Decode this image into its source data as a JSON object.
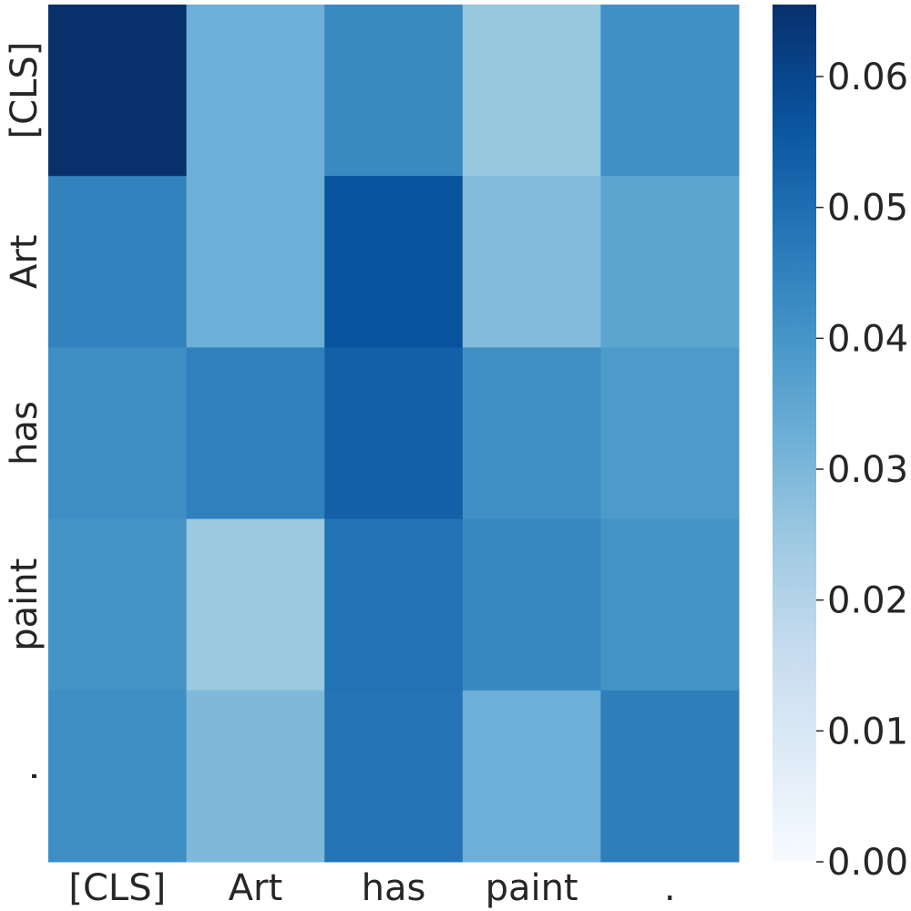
{
  "chart_data": {
    "type": "heatmap",
    "x_labels": [
      "[CLS]",
      "Art",
      "has",
      "paint",
      "."
    ],
    "y_labels": [
      "[CLS]",
      "Art",
      "has",
      "paint",
      "."
    ],
    "values": [
      [
        0.0655,
        0.0325,
        0.043,
        0.0255,
        0.0415
      ],
      [
        0.045,
        0.0325,
        0.057,
        0.029,
        0.0355
      ],
      [
        0.042,
        0.0455,
        0.0535,
        0.0415,
        0.0385
      ],
      [
        0.0405,
        0.025,
        0.049,
        0.0435,
        0.0405
      ],
      [
        0.042,
        0.0295,
        0.0485,
        0.0325,
        0.046
      ]
    ],
    "colormap": "Blues",
    "colorbar": {
      "min": 0.0,
      "max": 0.0655,
      "ticks": [
        0.0,
        0.01,
        0.02,
        0.03,
        0.04,
        0.05,
        0.06
      ],
      "tick_labels": [
        "0.00",
        "0.01",
        "0.02",
        "0.03",
        "0.04",
        "0.05",
        "0.06"
      ]
    },
    "title": "",
    "xlabel": "",
    "ylabel": ""
  }
}
